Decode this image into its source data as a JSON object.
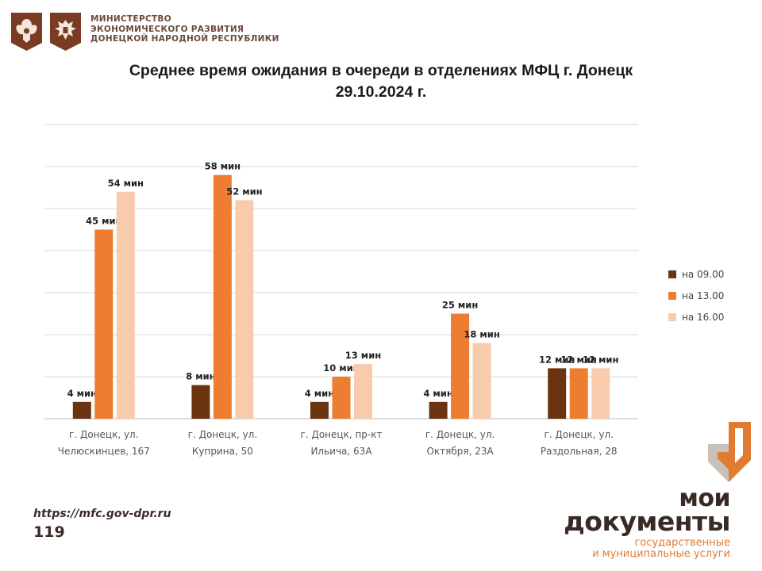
{
  "header": {
    "ministry_lines": [
      "МИНИСТЕРСТВО",
      "ЭКОНОМИЧЕСКОГО РАЗВИТИЯ",
      "ДОНЕЦКОЙ НАРОДНОЙ РЕСПУБЛИКИ"
    ]
  },
  "footer": {
    "url": "https://mfc.gov-dpr.ru",
    "page_number": "119",
    "brand_line1": "мои",
    "brand_line2": "документы",
    "brand_line3": "государственные",
    "brand_line4": "и муниципальные услуги"
  },
  "colors": {
    "series": [
      "#6b3410",
      "#ed7d31",
      "#f8cbad"
    ],
    "grid": "#d9d9d9",
    "brand_brown": "#3a2a26",
    "brand_orange": "#e07b31"
  },
  "chart_data": {
    "type": "bar",
    "title_line1": "Среднее время ожидания в очереди в отделениях МФЦ г. Донецк",
    "title_line2": "29.10.2024 г.",
    "categories": [
      [
        "г. Донецк, ул.",
        "Челюскинцев, 167"
      ],
      [
        "г. Донецк, ул.",
        "Куприна, 50"
      ],
      [
        "г. Донецк, пр-кт",
        "Ильича, 63А"
      ],
      [
        "г. Донецк, ул.",
        "Октября, 23А"
      ],
      [
        "г. Донецк, ул.",
        "Раздольная, 28"
      ]
    ],
    "series": [
      {
        "name": "на 09.00",
        "values": [
          4,
          8,
          4,
          4,
          12
        ]
      },
      {
        "name": "на 13.00",
        "values": [
          45,
          58,
          10,
          25,
          12
        ]
      },
      {
        "name": "на 16.00",
        "values": [
          54,
          52,
          13,
          18,
          12
        ]
      }
    ],
    "label_suffix": " мин",
    "ylim": [
      0,
      70
    ],
    "grid": true,
    "legend_position": "right"
  }
}
